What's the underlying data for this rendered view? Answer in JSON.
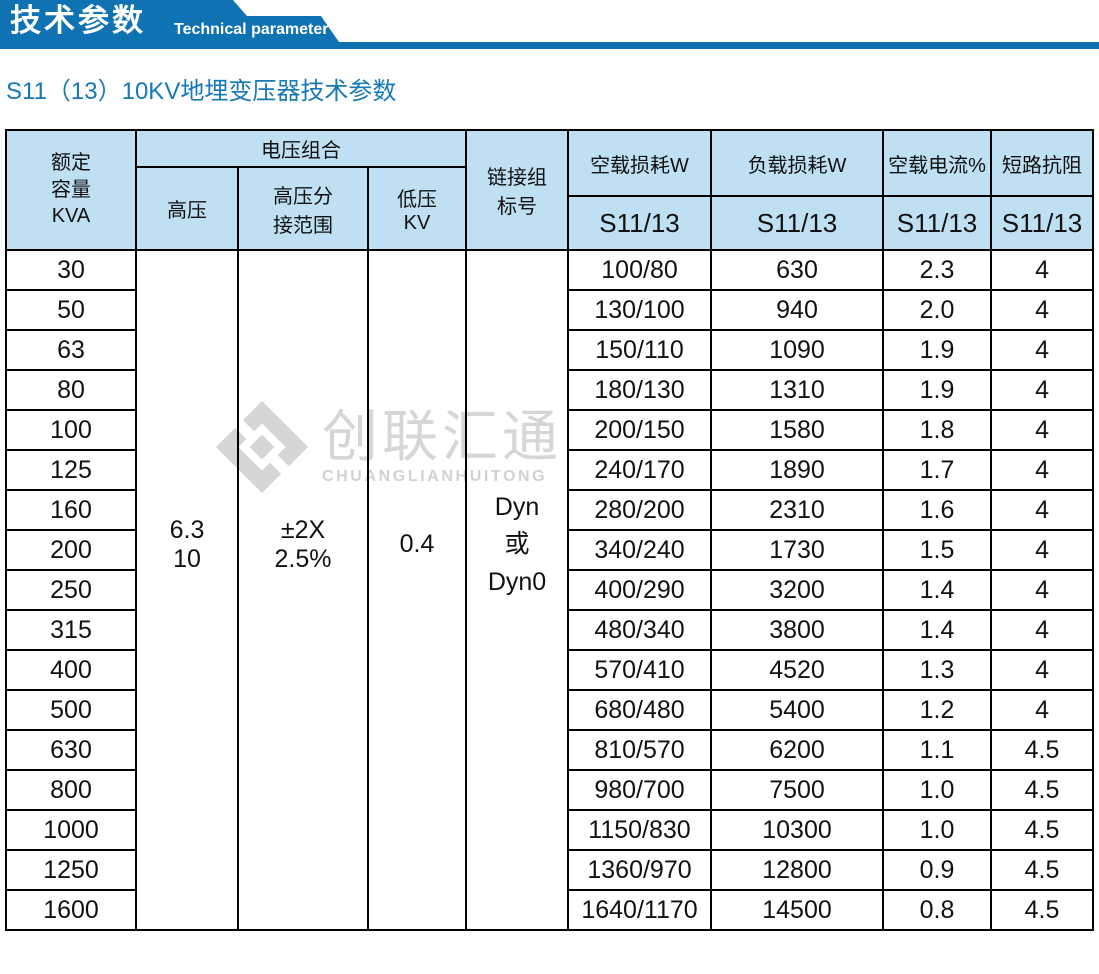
{
  "colors": {
    "banner_blue": "#0e72b3",
    "title_blue": "#1578b7",
    "header_bg": "#bfe0f2",
    "border": "#000000",
    "watermark_gray": "#d6d6d6"
  },
  "banner": {
    "title_cn": "技术参数",
    "title_en": "Technical parameter"
  },
  "page_title": "S11（13）10KV地埋变压器技术参数",
  "watermark": {
    "cn": "创联汇通",
    "en": "CHUANGLIANHUITONG"
  },
  "table": {
    "header": {
      "capacity": "额定\n容量\nKVA",
      "voltage_group": "电压组合",
      "hv": "高压",
      "tap": "高压分\n接范围",
      "lv": "低压\nKV",
      "vector_group": "链接组\n标号",
      "no_load_loss": "空载损耗W",
      "load_loss": "负载损耗W",
      "no_load_current": "空载电流%",
      "impedance": "短路抗阻",
      "sub_label": "S11/13"
    },
    "merged": {
      "hv": "6.3\n10",
      "tap": "±2X\n2.5%",
      "lv": "0.4",
      "vector": "Dyn\n或\nDyn0"
    },
    "rows": [
      {
        "capacity": "30",
        "no_load_loss_w": "100/80",
        "load_loss_w": "630",
        "no_load_current_pct": "2.3",
        "impedance": "4"
      },
      {
        "capacity": "50",
        "no_load_loss_w": "130/100",
        "load_loss_w": "940",
        "no_load_current_pct": "2.0",
        "impedance": "4"
      },
      {
        "capacity": "63",
        "no_load_loss_w": "150/110",
        "load_loss_w": "1090",
        "no_load_current_pct": "1.9",
        "impedance": "4"
      },
      {
        "capacity": "80",
        "no_load_loss_w": "180/130",
        "load_loss_w": "1310",
        "no_load_current_pct": "1.9",
        "impedance": "4"
      },
      {
        "capacity": "100",
        "no_load_loss_w": "200/150",
        "load_loss_w": "1580",
        "no_load_current_pct": "1.8",
        "impedance": "4"
      },
      {
        "capacity": "125",
        "no_load_loss_w": "240/170",
        "load_loss_w": "1890",
        "no_load_current_pct": "1.7",
        "impedance": "4"
      },
      {
        "capacity": "160",
        "no_load_loss_w": "280/200",
        "load_loss_w": "2310",
        "no_load_current_pct": "1.6",
        "impedance": "4"
      },
      {
        "capacity": "200",
        "no_load_loss_w": "340/240",
        "load_loss_w": "1730",
        "no_load_current_pct": "1.5",
        "impedance": "4"
      },
      {
        "capacity": "250",
        "no_load_loss_w": "400/290",
        "load_loss_w": "3200",
        "no_load_current_pct": "1.4",
        "impedance": "4"
      },
      {
        "capacity": "315",
        "no_load_loss_w": "480/340",
        "load_loss_w": "3800",
        "no_load_current_pct": "1.4",
        "impedance": "4"
      },
      {
        "capacity": "400",
        "no_load_loss_w": "570/410",
        "load_loss_w": "4520",
        "no_load_current_pct": "1.3",
        "impedance": "4"
      },
      {
        "capacity": "500",
        "no_load_loss_w": "680/480",
        "load_loss_w": "5400",
        "no_load_current_pct": "1.2",
        "impedance": "4"
      },
      {
        "capacity": "630",
        "no_load_loss_w": "810/570",
        "load_loss_w": "6200",
        "no_load_current_pct": "1.1",
        "impedance": "4.5"
      },
      {
        "capacity": "800",
        "no_load_loss_w": "980/700",
        "load_loss_w": "7500",
        "no_load_current_pct": "1.0",
        "impedance": "4.5"
      },
      {
        "capacity": "1000",
        "no_load_loss_w": "1150/830",
        "load_loss_w": "10300",
        "no_load_current_pct": "1.0",
        "impedance": "4.5"
      },
      {
        "capacity": "1250",
        "no_load_loss_w": "1360/970",
        "load_loss_w": "12800",
        "no_load_current_pct": "0.9",
        "impedance": "4.5"
      },
      {
        "capacity": "1600",
        "no_load_loss_w": "1640/1170",
        "load_loss_w": "14500",
        "no_load_current_pct": "0.8",
        "impedance": "4.5"
      }
    ]
  }
}
